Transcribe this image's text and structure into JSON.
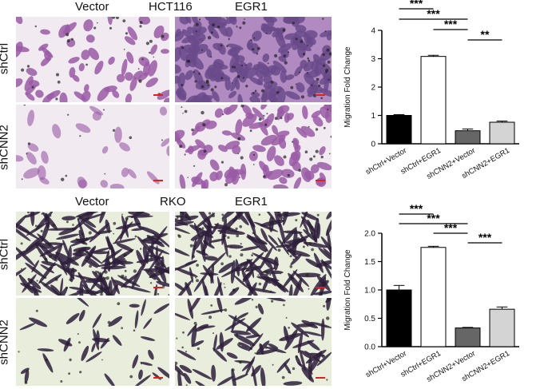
{
  "panelA": {
    "cell_line": "HCT116",
    "col_left": "Vector",
    "col_right": "EGR1",
    "row_top": "shCtrl",
    "row_bottom": "shCNN2"
  },
  "panelB": {
    "cell_line": "RKO",
    "col_left": "Vector",
    "col_right": "EGR1",
    "row_top": "shCtrl",
    "row_bottom": "shCNN2"
  },
  "colors": {
    "hct_bg": "#f1ebf1",
    "hct_cell": "#9a5aa6",
    "hct_dense": "#6a4a8a",
    "rko_bg": "#e9eddc",
    "rko_cell": "#2e1f3c",
    "scale_bar": "#e0201b"
  },
  "chart_data": [
    {
      "type": "bar",
      "ylabel": "Migration Fold Change",
      "ylim": [
        0,
        4
      ],
      "yticks": [
        "0",
        "1",
        "2",
        "3",
        "4"
      ],
      "categories": [
        "shCtrl+Vector",
        "shCtrl+EGR1",
        "shCNN2+Vector",
        "shCNN2+EGR1"
      ],
      "values": [
        1.0,
        3.08,
        0.46,
        0.76
      ],
      "errors": [
        0.03,
        0.04,
        0.06,
        0.04
      ],
      "bar_colors": [
        "#000000",
        "#ffffff",
        "#666666",
        "#d4d4d4"
      ],
      "significance": [
        "***",
        "***",
        "***",
        "**"
      ]
    },
    {
      "type": "bar",
      "ylabel": "Migration Fold Change",
      "ylim": [
        0,
        2.0
      ],
      "yticks": [
        "0.0",
        "0.5",
        "1.0",
        "1.5",
        "2.0"
      ],
      "categories": [
        "shCtrl+Vector",
        "shCtrl+EGR1",
        "shCNN2+Vector",
        "shCNN2+EGR1"
      ],
      "values": [
        1.0,
        1.75,
        0.33,
        0.66
      ],
      "errors": [
        0.08,
        0.02,
        0.01,
        0.04
      ],
      "bar_colors": [
        "#000000",
        "#ffffff",
        "#666666",
        "#d4d4d4"
      ],
      "significance": [
        "***",
        "***",
        "***",
        "***"
      ]
    }
  ]
}
